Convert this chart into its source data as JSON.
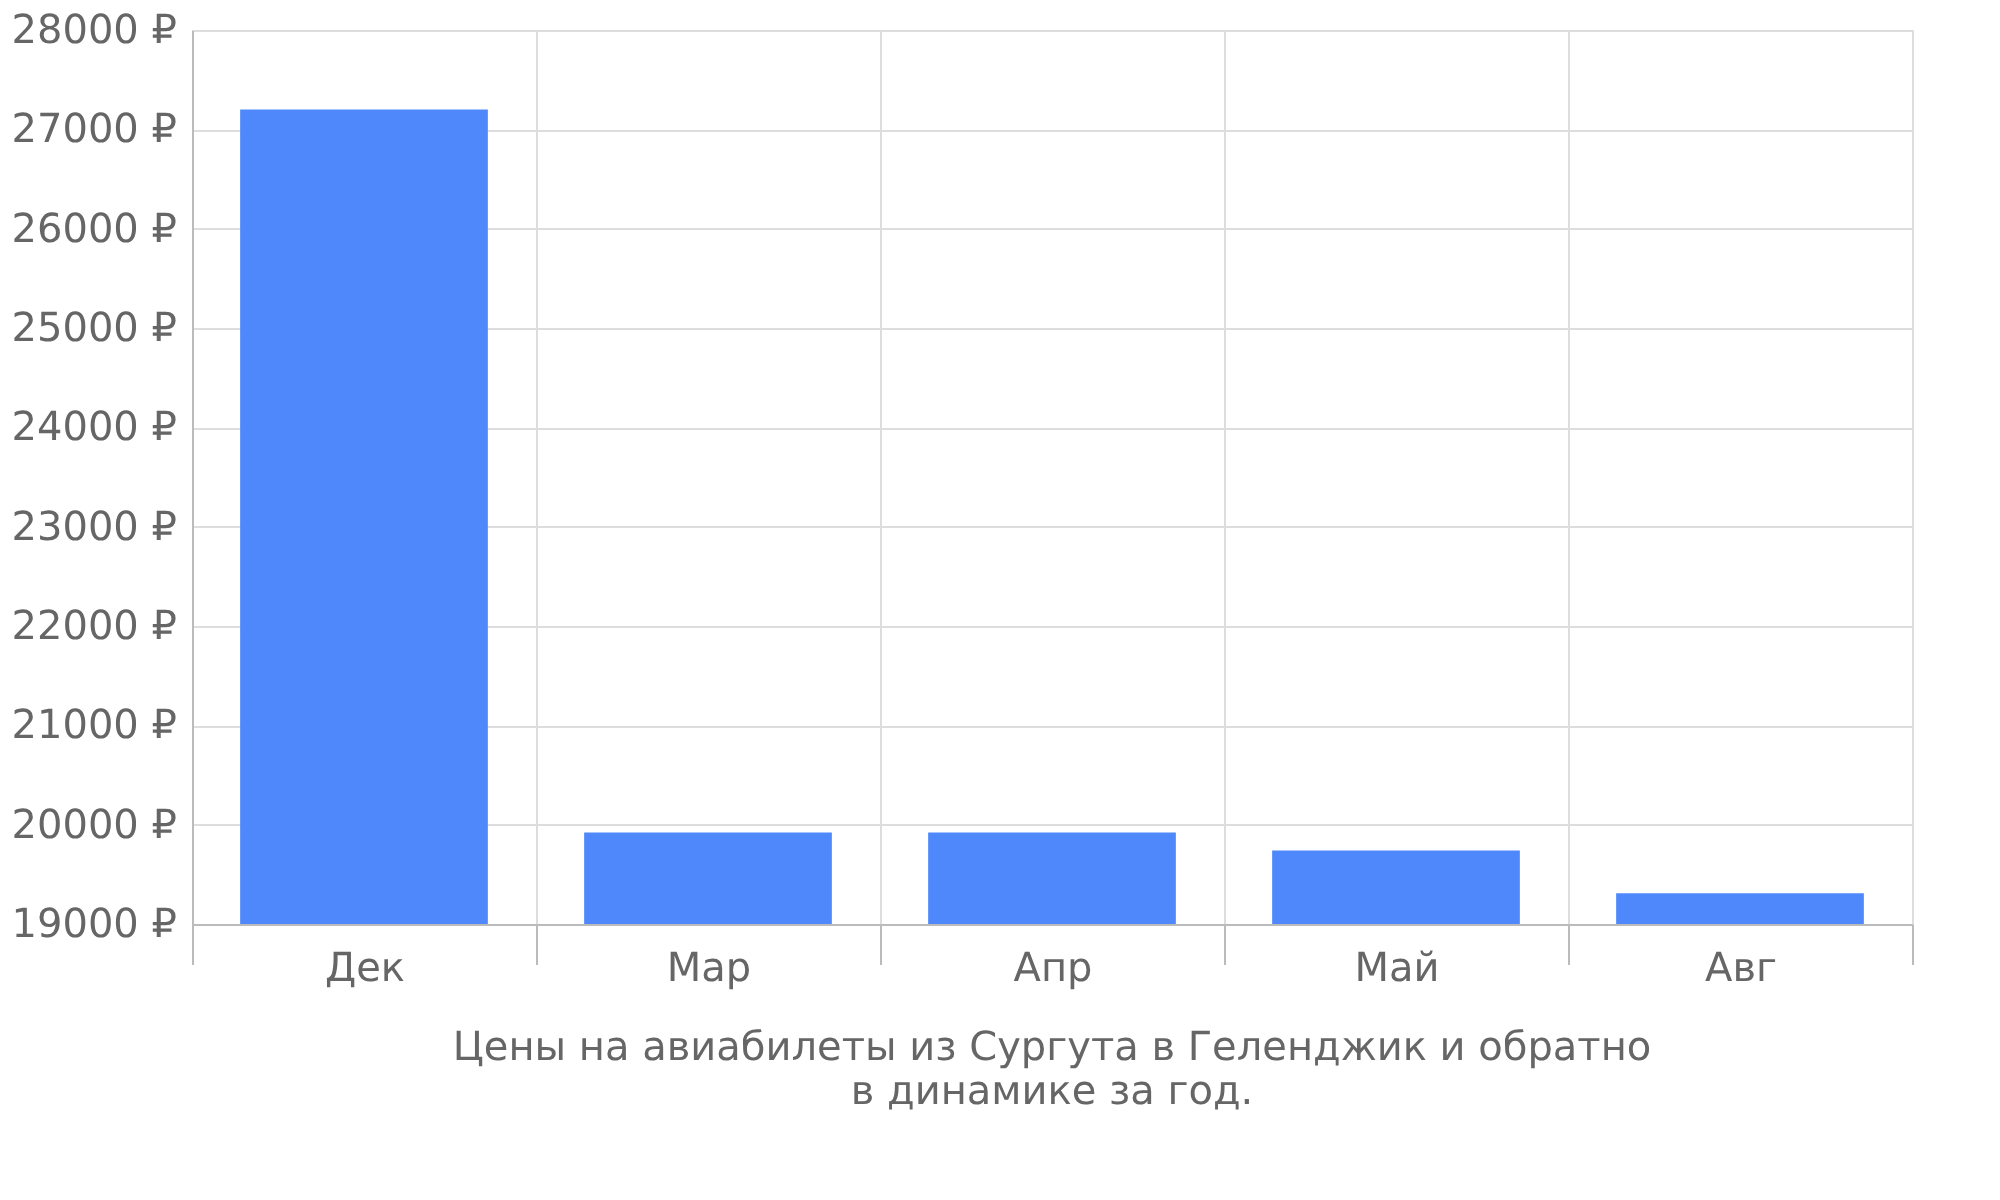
{
  "chart_data": {
    "type": "bar",
    "title": "Цены на авиабилеты из Сургута в Геленджик и обратно\nв динамике за год.",
    "categories": [
      "Дек",
      "Мар",
      "Апр",
      "Май",
      "Авг"
    ],
    "values": [
      27200,
      19920,
      19920,
      19740,
      19310
    ],
    "color": "#4e88fb",
    "ylim": [
      19000,
      28000
    ],
    "yticks": [
      {
        "value": 19000,
        "label": "19000 ₽"
      },
      {
        "value": 20000,
        "label": "20000 ₽"
      },
      {
        "value": 21000,
        "label": "21000 ₽"
      },
      {
        "value": 22000,
        "label": "22000 ₽"
      },
      {
        "value": 23000,
        "label": "23000 ₽"
      },
      {
        "value": 24000,
        "label": "24000 ₽"
      },
      {
        "value": 25000,
        "label": "25000 ₽"
      },
      {
        "value": 26000,
        "label": "26000 ₽"
      },
      {
        "value": 27000,
        "label": "27000 ₽"
      },
      {
        "value": 28000,
        "label": "28000 ₽"
      }
    ],
    "grid": true
  }
}
